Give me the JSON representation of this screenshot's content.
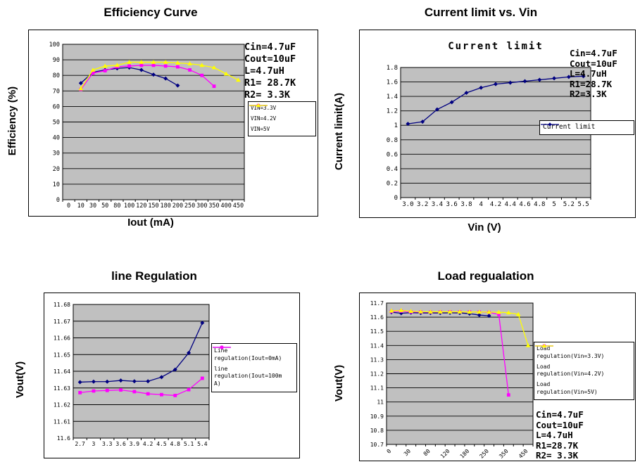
{
  "colors": {
    "plot_bg": "#c0c0c0",
    "navy": "#000080",
    "magenta": "#ff00ff",
    "yellow": "#ffff00",
    "grid": "#000000"
  },
  "chart_data": [
    {
      "type": "line",
      "title": "Efficiency Curve",
      "xlabel": "Iout (mA)",
      "ylabel": "Efficiency (%)",
      "ylim": [
        0,
        100
      ],
      "ytick_labels": [
        "100",
        "90",
        "80",
        "70",
        "60",
        "50",
        "40",
        "30",
        "20",
        "10",
        "0"
      ],
      "grid": true,
      "legend_position": "right",
      "categories": [
        "0",
        "10",
        "30",
        "50",
        "80",
        "100",
        "120",
        "150",
        "180",
        "200",
        "250",
        "300",
        "350",
        "400",
        "450"
      ],
      "series": [
        {
          "name": "VIN=3.3V",
          "color": "#000080",
          "marker": "diamond",
          "legend_lines": [
            "VIN=3.3V"
          ],
          "values": [
            null,
            75,
            82,
            83.5,
            84.5,
            85,
            83.5,
            80.5,
            78,
            73.5,
            null,
            null,
            null,
            null,
            null
          ]
        },
        {
          "name": "VIN=4.2V",
          "color": "#ff00ff",
          "marker": "square",
          "legend_lines": [
            "VIN=4.2V"
          ],
          "values": [
            null,
            71,
            81.5,
            83,
            85.5,
            86,
            86.5,
            86.5,
            86,
            85.5,
            83.5,
            80,
            73,
            null,
            null
          ]
        },
        {
          "name": "VIN=5V",
          "color": "#ffff00",
          "marker": "triangle",
          "legend_lines": [
            "VIN=5V"
          ],
          "values": [
            null,
            71.5,
            83.5,
            86,
            86.5,
            88.5,
            88.5,
            88.5,
            88.5,
            88,
            87.5,
            86.5,
            85,
            81,
            77
          ]
        }
      ],
      "annotation": [
        "Cin=4.7uF",
        "Cout=10uF",
        "L=4.7uH",
        "R1= 28.7K",
        "R2= 3.3K"
      ]
    },
    {
      "type": "line",
      "title": "Current limit vs. Vin",
      "inner_title": "Current limit",
      "xlabel": "Vin (V)",
      "ylabel": "Current limit(A)",
      "ylim": [
        0,
        1.8
      ],
      "ytick_labels": [
        "1.8",
        "1.6",
        "1.4",
        "1.2",
        "1",
        "0.8",
        "0.6",
        "0.4",
        "0.2",
        "0"
      ],
      "grid": true,
      "legend_position": "right",
      "categories": [
        "3.0",
        "3.2",
        "3.4",
        "3.6",
        "3.8",
        "4",
        "4.2",
        "4.4",
        "4.6",
        "4.8",
        "5",
        "5.2",
        "5.5"
      ],
      "series": [
        {
          "name": "Current limit",
          "color": "#000080",
          "marker": "diamond",
          "legend_lines": [
            "Current limit"
          ],
          "values": [
            1.02,
            1.05,
            1.22,
            1.32,
            1.45,
            1.52,
            1.57,
            1.59,
            1.61,
            1.63,
            1.65,
            1.67,
            1.68
          ]
        }
      ],
      "annotation": [
        "Cin=4.7uF",
        "Cout=10uF",
        "L=4.7uH",
        "R1=28.7K",
        "R2=3.3K"
      ]
    },
    {
      "type": "line",
      "title": "line Regulation",
      "xlabel": "",
      "ylabel": "Vout(V)",
      "ylim": [
        11.6,
        11.68
      ],
      "ytick_labels": [
        "11.68",
        "11.67",
        "11.66",
        "11.65",
        "11.64",
        "11.63",
        "11.62",
        "11.61",
        "11.6"
      ],
      "grid": true,
      "legend_position": "right",
      "categories": [
        "2.7",
        "3",
        "3.3",
        "3.6",
        "3.9",
        "4.2",
        "4.5",
        "4.8",
        "5.1",
        "5.4"
      ],
      "series": [
        {
          "name": "Line regulation(Iout=0mA)",
          "color": "#000080",
          "marker": "diamond",
          "legend_lines": [
            "Line",
            "regulation(Iout=0mA)"
          ],
          "values": [
            11.6335,
            11.6338,
            11.6338,
            11.6345,
            11.634,
            11.634,
            11.6365,
            11.641,
            11.651,
            11.669
          ]
        },
        {
          "name": "line regulation(Iout=100mA)",
          "color": "#ff00ff",
          "marker": "square",
          "legend_lines": [
            "line",
            "regulation(Iout=100m",
            "A)"
          ],
          "values": [
            11.6272,
            11.6282,
            11.6285,
            11.6288,
            11.6278,
            11.6265,
            11.626,
            11.6255,
            11.629,
            11.6358
          ]
        }
      ],
      "annotation": []
    },
    {
      "type": "line",
      "title": "Load regualation",
      "xlabel": "",
      "ylabel": "Vout(V)",
      "ylim": [
        10.7,
        11.7
      ],
      "ytick_labels": [
        "11.7",
        "11.6",
        "11.5",
        "11.4",
        "11.3",
        "11.2",
        "11.1",
        "11",
        "10.9",
        "10.8",
        "10.7"
      ],
      "grid": true,
      "legend_position": "right",
      "xtick_every": 2,
      "categories": [
        "0",
        "10",
        "30",
        "50",
        "80",
        "100",
        "120",
        "150",
        "180",
        "200",
        "250",
        "300",
        "350",
        "400",
        "450"
      ],
      "series": [
        {
          "name": "Load regulation(Vin=3.3V)",
          "color": "#000080",
          "marker": "diamond",
          "legend_lines": [
            "Load",
            "regulation(Vin=3.3V)"
          ],
          "values": [
            11.635,
            11.628,
            11.632,
            11.63,
            11.63,
            11.63,
            11.631,
            11.63,
            11.625,
            11.615,
            11.61,
            null,
            null,
            null,
            null
          ]
        },
        {
          "name": "Load regulation(Vin=4.2V)",
          "color": "#ff00ff",
          "marker": "square",
          "legend_lines": [
            "Load",
            "regulation(Vin=4.2V)"
          ],
          "values": [
            11.64,
            11.643,
            11.638,
            11.637,
            11.636,
            11.637,
            11.638,
            11.637,
            11.637,
            11.636,
            11.634,
            11.62,
            11.05,
            null,
            null
          ]
        },
        {
          "name": "Load regulation(Vin=5V)",
          "color": "#ffff00",
          "marker": "triangle",
          "legend_lines": [
            "Load",
            "regulation(Vin=5V)"
          ],
          "values": [
            11.645,
            11.648,
            11.642,
            11.639,
            11.638,
            11.638,
            11.638,
            11.638,
            11.637,
            11.637,
            11.636,
            11.635,
            11.632,
            11.62,
            11.4
          ]
        }
      ],
      "annotation": [
        "Cin=4.7uF",
        "Cout=10uF",
        "L=4.7uH",
        "R1=28.7K",
        "R2= 3.3K"
      ]
    }
  ]
}
